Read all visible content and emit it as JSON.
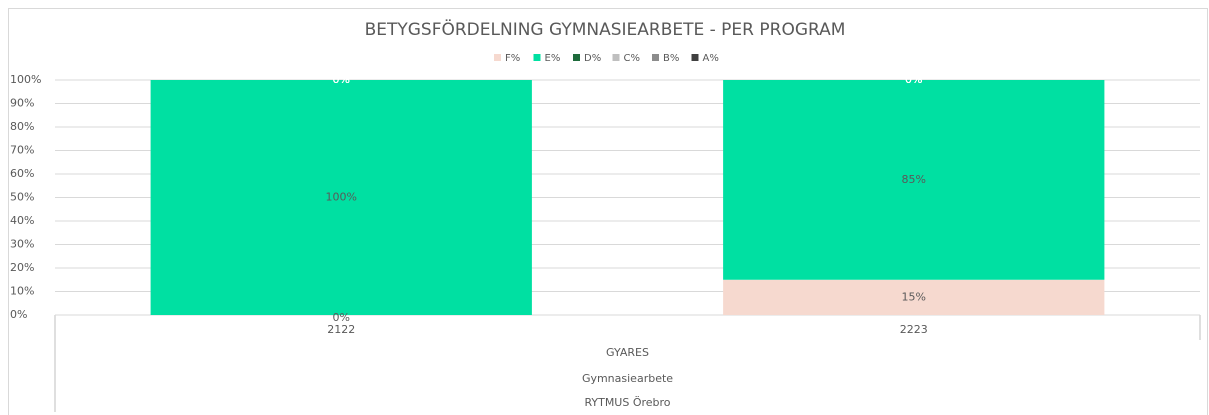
{
  "chart_data": {
    "type": "stacked_bar_100",
    "title": "BETYGSFÖRDELNING GYMNASIEARBETE - PER PROGRAM",
    "categories": [
      "2122",
      "2223"
    ],
    "category_groups": [
      "GYARES",
      "Gymnasiearbete",
      "RYTMUS Örebro"
    ],
    "series": [
      {
        "name": "F%",
        "color": "#f6d9cf",
        "values": [
          0,
          15
        ],
        "value_labels": [
          "0%",
          "15%"
        ]
      },
      {
        "name": "E%",
        "color": "#00e0a2",
        "values": [
          100,
          85
        ],
        "value_labels": [
          "100%",
          "85%"
        ]
      },
      {
        "name": "D%",
        "color": "#1e6b3c",
        "values": [
          0,
          0
        ],
        "value_labels": [
          "0%",
          "0%"
        ]
      },
      {
        "name": "C%",
        "color": "#bfbfbf",
        "values": [
          0,
          0
        ],
        "value_labels": [
          "0%",
          "0%"
        ]
      },
      {
        "name": "B%",
        "color": "#8c8c8c",
        "values": [
          0,
          0
        ],
        "value_labels": [
          "0%",
          "0%"
        ]
      },
      {
        "name": "A%",
        "color": "#404040",
        "values": [
          0,
          0
        ],
        "value_labels": [
          "0%",
          "0%"
        ]
      }
    ],
    "ylim": [
      0,
      100
    ],
    "yticks": [
      {
        "value": 0,
        "label": "0%"
      },
      {
        "value": 10,
        "label": "10%"
      },
      {
        "value": 20,
        "label": "20%"
      },
      {
        "value": 30,
        "label": "30%"
      },
      {
        "value": 40,
        "label": "40%"
      },
      {
        "value": 50,
        "label": "50%"
      },
      {
        "value": 60,
        "label": "60%"
      },
      {
        "value": 70,
        "label": "70%"
      },
      {
        "value": 80,
        "label": "80%"
      },
      {
        "value": 90,
        "label": "90%"
      },
      {
        "value": 100,
        "label": "100%"
      }
    ],
    "grid": true,
    "legend": "top"
  }
}
